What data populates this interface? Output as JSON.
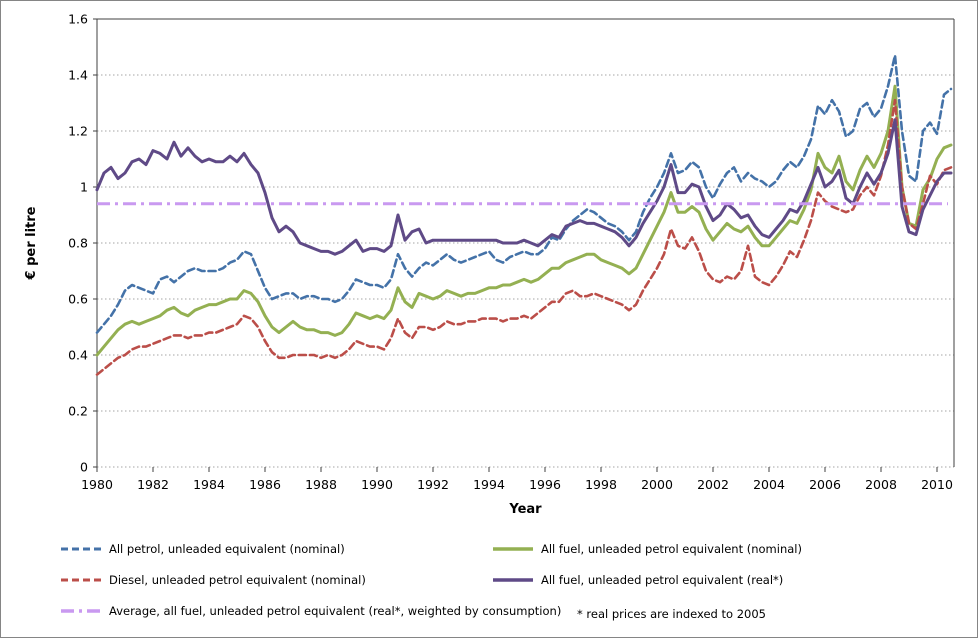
{
  "figure": {
    "y_axis_title": "€ per litre",
    "x_axis_title": "Year"
  },
  "legend": {
    "footnote": "* real prices are indexed to 2005"
  },
  "chart_data": {
    "type": "line",
    "title": "",
    "xlabel": "Year",
    "ylabel": "€ per litre",
    "xlim": [
      1980,
      2010.6
    ],
    "ylim": [
      0,
      1.6
    ],
    "grid": "horizontal-dotted",
    "legend_position": "bottom-two-columns",
    "x_start": 1980,
    "x_step": 0.25,
    "x_ticks": [
      1980,
      1982,
      1984,
      1986,
      1988,
      1990,
      1992,
      1994,
      1996,
      1998,
      2000,
      2002,
      2004,
      2006,
      2008,
      2010
    ],
    "y_ticks": [
      0,
      0.2,
      0.4,
      0.6,
      0.8,
      1,
      1.2,
      1.4,
      1.6
    ],
    "y_tick_labels": [
      "0",
      "0.2",
      "0.4",
      "0.6",
      "0.8",
      "1",
      "1.2",
      "1.4",
      "1.6"
    ],
    "series": [
      {
        "name": "All petrol, unleaded equivalent (nominal)",
        "color": "#4472A8",
        "dash": "dashed",
        "width": 2.6,
        "values": [
          0.48,
          0.51,
          0.54,
          0.58,
          0.63,
          0.65,
          0.64,
          0.63,
          0.62,
          0.67,
          0.68,
          0.66,
          0.68,
          0.7,
          0.71,
          0.7,
          0.7,
          0.7,
          0.71,
          0.73,
          0.74,
          0.77,
          0.76,
          0.7,
          0.64,
          0.6,
          0.61,
          0.62,
          0.62,
          0.6,
          0.61,
          0.61,
          0.6,
          0.6,
          0.59,
          0.6,
          0.63,
          0.67,
          0.66,
          0.65,
          0.65,
          0.64,
          0.67,
          0.76,
          0.71,
          0.68,
          0.71,
          0.73,
          0.72,
          0.74,
          0.76,
          0.74,
          0.73,
          0.74,
          0.75,
          0.76,
          0.77,
          0.74,
          0.73,
          0.75,
          0.76,
          0.77,
          0.76,
          0.76,
          0.78,
          0.82,
          0.81,
          0.85,
          0.88,
          0.9,
          0.92,
          0.91,
          0.89,
          0.87,
          0.86,
          0.84,
          0.81,
          0.84,
          0.91,
          0.96,
          1.0,
          1.05,
          1.12,
          1.05,
          1.06,
          1.09,
          1.07,
          1.0,
          0.96,
          1.01,
          1.05,
          1.07,
          1.02,
          1.05,
          1.03,
          1.02,
          1.0,
          1.02,
          1.06,
          1.09,
          1.07,
          1.11,
          1.17,
          1.29,
          1.26,
          1.31,
          1.27,
          1.18,
          1.2,
          1.28,
          1.3,
          1.25,
          1.28,
          1.36,
          1.47,
          1.2,
          1.04,
          1.02,
          1.2,
          1.23,
          1.19,
          1.33,
          1.35
        ]
      },
      {
        "name": "All fuel, unleaded petrol equivalent (nominal)",
        "color": "#94B052",
        "dash": "solid",
        "width": 3,
        "values": [
          0.4,
          0.43,
          0.46,
          0.49,
          0.51,
          0.52,
          0.51,
          0.52,
          0.53,
          0.54,
          0.56,
          0.57,
          0.55,
          0.54,
          0.56,
          0.57,
          0.58,
          0.58,
          0.59,
          0.6,
          0.6,
          0.63,
          0.62,
          0.59,
          0.54,
          0.5,
          0.48,
          0.5,
          0.52,
          0.5,
          0.49,
          0.49,
          0.48,
          0.48,
          0.47,
          0.48,
          0.51,
          0.55,
          0.54,
          0.53,
          0.54,
          0.53,
          0.56,
          0.64,
          0.59,
          0.57,
          0.62,
          0.61,
          0.6,
          0.61,
          0.63,
          0.62,
          0.61,
          0.62,
          0.62,
          0.63,
          0.64,
          0.64,
          0.65,
          0.65,
          0.66,
          0.67,
          0.66,
          0.67,
          0.69,
          0.71,
          0.71,
          0.73,
          0.74,
          0.75,
          0.76,
          0.76,
          0.74,
          0.73,
          0.72,
          0.71,
          0.69,
          0.71,
          0.76,
          0.81,
          0.86,
          0.91,
          0.98,
          0.91,
          0.91,
          0.93,
          0.91,
          0.85,
          0.81,
          0.84,
          0.87,
          0.85,
          0.84,
          0.86,
          0.82,
          0.79,
          0.79,
          0.82,
          0.85,
          0.88,
          0.87,
          0.92,
          0.99,
          1.12,
          1.07,
          1.05,
          1.11,
          1.02,
          0.99,
          1.06,
          1.11,
          1.07,
          1.12,
          1.2,
          1.36,
          1.0,
          0.87,
          0.86,
          0.99,
          1.03,
          1.1,
          1.14,
          1.15
        ]
      },
      {
        "name": "Diesel, unleaded petrol equivalent (nominal)",
        "color": "#BB4E49",
        "dash": "dashed",
        "width": 2.6,
        "values": [
          0.33,
          0.35,
          0.37,
          0.39,
          0.4,
          0.42,
          0.43,
          0.43,
          0.44,
          0.45,
          0.46,
          0.47,
          0.47,
          0.46,
          0.47,
          0.47,
          0.48,
          0.48,
          0.49,
          0.5,
          0.51,
          0.54,
          0.53,
          0.5,
          0.45,
          0.41,
          0.39,
          0.39,
          0.4,
          0.4,
          0.4,
          0.4,
          0.39,
          0.4,
          0.39,
          0.4,
          0.42,
          0.45,
          0.44,
          0.43,
          0.43,
          0.42,
          0.46,
          0.53,
          0.48,
          0.46,
          0.5,
          0.5,
          0.49,
          0.5,
          0.52,
          0.51,
          0.51,
          0.52,
          0.52,
          0.53,
          0.53,
          0.53,
          0.52,
          0.53,
          0.53,
          0.54,
          0.53,
          0.55,
          0.57,
          0.59,
          0.59,
          0.62,
          0.63,
          0.61,
          0.61,
          0.62,
          0.61,
          0.6,
          0.59,
          0.58,
          0.56,
          0.58,
          0.63,
          0.67,
          0.71,
          0.76,
          0.85,
          0.79,
          0.78,
          0.82,
          0.77,
          0.7,
          0.67,
          0.66,
          0.68,
          0.67,
          0.7,
          0.79,
          0.68,
          0.66,
          0.65,
          0.68,
          0.72,
          0.77,
          0.75,
          0.81,
          0.88,
          0.98,
          0.95,
          0.93,
          0.92,
          0.91,
          0.92,
          0.97,
          1.0,
          0.97,
          1.04,
          1.15,
          1.31,
          1.0,
          0.87,
          0.85,
          0.94,
          1.04,
          1.01,
          1.06,
          1.07
        ]
      },
      {
        "name": "All fuel, unleaded petrol equivalent (real*)",
        "color": "#5F4A87",
        "dash": "solid",
        "width": 3,
        "values": [
          0.99,
          1.05,
          1.07,
          1.03,
          1.05,
          1.09,
          1.1,
          1.08,
          1.13,
          1.12,
          1.1,
          1.16,
          1.11,
          1.14,
          1.11,
          1.09,
          1.1,
          1.09,
          1.09,
          1.11,
          1.09,
          1.12,
          1.08,
          1.05,
          0.98,
          0.89,
          0.84,
          0.86,
          0.84,
          0.8,
          0.79,
          0.78,
          0.77,
          0.77,
          0.76,
          0.77,
          0.79,
          0.81,
          0.77,
          0.78,
          0.78,
          0.77,
          0.79,
          0.9,
          0.81,
          0.84,
          0.85,
          0.8,
          0.81,
          0.81,
          0.81,
          0.81,
          0.81,
          0.81,
          0.81,
          0.81,
          0.81,
          0.81,
          0.8,
          0.8,
          0.8,
          0.81,
          0.8,
          0.79,
          0.81,
          0.83,
          0.82,
          0.86,
          0.87,
          0.88,
          0.87,
          0.87,
          0.86,
          0.85,
          0.84,
          0.82,
          0.79,
          0.82,
          0.87,
          0.91,
          0.95,
          1.0,
          1.08,
          0.98,
          0.98,
          1.01,
          1.0,
          0.93,
          0.88,
          0.9,
          0.94,
          0.92,
          0.89,
          0.9,
          0.86,
          0.83,
          0.82,
          0.85,
          0.88,
          0.92,
          0.91,
          0.95,
          1.01,
          1.07,
          1.0,
          1.02,
          1.06,
          0.96,
          0.94,
          1.0,
          1.05,
          1.01,
          1.05,
          1.12,
          1.24,
          0.93,
          0.84,
          0.83,
          0.92,
          0.97,
          1.02,
          1.05,
          1.05
        ]
      },
      {
        "name": "Average, all fuel, unleaded petrol equivalent (real*, weighted by consumption)",
        "color": "#C999F0",
        "dash": "dashdot",
        "width": 3,
        "constant": 0.94
      }
    ]
  }
}
